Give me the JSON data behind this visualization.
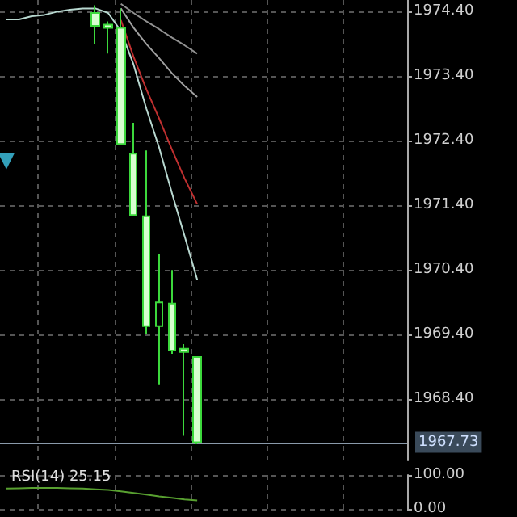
{
  "chart_data": [
    {
      "type": "candlestick",
      "categories": [
        null,
        null,
        null,
        null,
        null,
        null,
        null,
        null,
        null,
        null,
        null,
        null,
        null,
        null,
        null,
        null,
        null,
        null,
        null,
        null,
        null,
        null,
        null,
        null,
        null,
        null,
        null,
        null,
        null,
        null,
        null,
        null
      ],
      "ohlc": [
        null,
        null,
        null,
        null,
        null,
        null,
        null,
        [
          1974.38,
          1974.5,
          1973.9,
          1974.18
        ],
        [
          1974.2,
          1974.25,
          1973.75,
          1974.15
        ],
        [
          1974.15,
          1974.45,
          1972.35,
          1972.35
        ],
        [
          1972.2,
          1972.68,
          1971.25,
          1971.25
        ],
        [
          1971.23,
          1972.25,
          1969.4,
          1969.53
        ],
        [
          1969.53,
          1970.65,
          1968.63,
          1969.9
        ],
        [
          1969.88,
          1970.4,
          1969.1,
          1969.15
        ],
        [
          1969.18,
          1969.25,
          1967.83,
          1969.13
        ],
        [
          1969.05,
          1969.05,
          1967.7,
          1967.73
        ],
        null,
        null,
        null,
        null,
        null,
        null,
        null,
        null,
        null,
        null,
        null,
        null,
        null,
        null,
        null,
        null
      ],
      "series": [
        {
          "type": "line",
          "color": "#b8d8d0",
          "values": [
            1974.28,
            1974.28,
            1974.33,
            1974.35,
            1974.4,
            1974.43,
            1974.45,
            1974.45,
            1974.38,
            1974.1,
            1973.58,
            1972.9,
            1972.3,
            1971.6,
            1970.93,
            1970.25,
            null,
            null,
            null,
            null,
            null,
            null,
            null,
            null,
            null,
            null,
            null,
            null,
            null,
            null,
            null,
            null
          ]
        },
        {
          "type": "line",
          "color": "#c03030",
          "values": [
            null,
            null,
            null,
            null,
            null,
            null,
            null,
            null,
            null,
            1974.27,
            1973.7,
            1973.2,
            1972.75,
            1972.27,
            1971.82,
            1971.42,
            null,
            null,
            null,
            null,
            null,
            null,
            null,
            null,
            null,
            null,
            null,
            null,
            null,
            null,
            null,
            null
          ]
        },
        {
          "type": "line",
          "color": "#a0a0a0",
          "values": [
            null,
            null,
            null,
            null,
            null,
            null,
            null,
            null,
            null,
            1974.45,
            1974.15,
            1973.9,
            1973.68,
            1973.45,
            1973.25,
            1973.08,
            null,
            null,
            null,
            null,
            null,
            null,
            null,
            null,
            null,
            null,
            null,
            null,
            null,
            null,
            null,
            null
          ]
        },
        {
          "type": "line",
          "color": "#909090",
          "values": [
            null,
            null,
            null,
            null,
            null,
            null,
            null,
            null,
            null,
            1974.52,
            1974.38,
            1974.25,
            1974.13,
            1974.0,
            1973.88,
            1973.75,
            null,
            null,
            null,
            null,
            null,
            null,
            null,
            null,
            null,
            null,
            null,
            null,
            null,
            null,
            null,
            null
          ]
        },
        {
          "type": "scatter",
          "marker": "triangle",
          "color": "#40c8e8",
          "values": [
            1972.08,
            null,
            null,
            null,
            null,
            null,
            null,
            null,
            null,
            null,
            null,
            null,
            null,
            null,
            null,
            null,
            null,
            null,
            null,
            null,
            null,
            null,
            null,
            null,
            null,
            null,
            null,
            null,
            null,
            null,
            null,
            null
          ]
        }
      ],
      "ylim": [
        1967.45,
        1974.58
      ],
      "yticks": [
        {
          "value": 1968.4,
          "label": "1968.40"
        },
        {
          "value": 1969.4,
          "label": "1969.40"
        },
        {
          "value": 1970.4,
          "label": "1970.40"
        },
        {
          "value": 1971.4,
          "label": "1971.40"
        },
        {
          "value": 1972.4,
          "label": "1972.40"
        },
        {
          "value": 1973.4,
          "label": "1973.40"
        },
        {
          "value": 1974.4,
          "label": "1974.40"
        }
      ],
      "ref_lines": [
        {
          "axis": "y",
          "value": 1967.73,
          "label": "1967.73",
          "color": "#8a9aaa"
        }
      ],
      "grid": true,
      "tick_labels": "y"
    },
    {
      "type": "line",
      "title": "RSI(14) 25.15",
      "categories": [
        null,
        null,
        null,
        null,
        null,
        null,
        null,
        null,
        null,
        null,
        null,
        null,
        null,
        null,
        null,
        null,
        null,
        null,
        null,
        null,
        null,
        null,
        null,
        null,
        null,
        null,
        null,
        null,
        null,
        null,
        null,
        null
      ],
      "series": [
        {
          "color": "#58a030",
          "values": [
            60,
            61,
            62,
            62,
            62,
            61,
            60,
            58,
            56,
            52,
            47,
            42,
            37,
            33,
            28,
            25,
            null,
            null,
            null,
            null,
            null,
            null,
            null,
            null,
            null,
            null,
            null,
            null,
            null,
            null,
            null,
            null
          ]
        }
      ],
      "ylim": [
        0,
        100
      ],
      "yticks": [
        {
          "value": 0,
          "label": "0.00"
        },
        {
          "value": 100,
          "label": "100.00"
        }
      ],
      "grid": true,
      "tick_labels": "y"
    }
  ]
}
